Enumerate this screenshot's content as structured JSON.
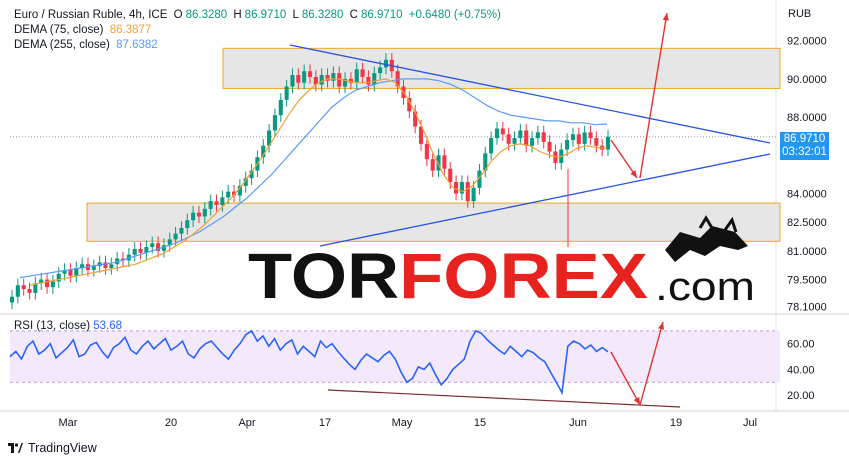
{
  "header": {
    "symbol": "Euro / Russian Ruble, 4h, ICE",
    "open_label": "O",
    "open": "86.3280",
    "high_label": "H",
    "high": "86.9710",
    "low_label": "L",
    "low": "86.3280",
    "close_label": "C",
    "close": "86.9710",
    "change": "+0.6480 (+0.75%)",
    "dema75_label": "DEMA (75, close)",
    "dema75": "86.3877",
    "dema255_label": "DEMA (255, close)",
    "dema255": "87.6382",
    "currency": "RUB"
  },
  "price_badge": {
    "price": "86.9710",
    "countdown": "03:32:01"
  },
  "rsi": {
    "label": "RSI (13, close)",
    "value": "53.68"
  },
  "watermark": {
    "text_dark": "TOR",
    "text_red": "FOREX",
    "text_suffix": ".com"
  },
  "brand": {
    "name": "TradingView"
  },
  "colors": {
    "up": "#089981",
    "down": "#f23645",
    "dema75": "#f2a033",
    "dema255": "#5b9cf6",
    "trendline": "#2a52e0",
    "rsi": "#2962ff",
    "zone": "#f5a623",
    "arrow": "#e63232"
  },
  "chart_data": [
    {
      "type": "candlestick",
      "title": "Euro / Russian Ruble, 4h, ICE",
      "y_axis_ticks": [
        "92.0000",
        "90.0000",
        "88.0000",
        "84.0000",
        "82.5000",
        "81.0000",
        "79.5000",
        "78.1000"
      ],
      "x_axis_ticks": [
        "Mar",
        "20",
        "Apr",
        "17",
        "May",
        "15",
        "Jun",
        "19",
        "Jul"
      ],
      "ylim": [
        77.8,
        93.5
      ],
      "closes": [
        78.6,
        79.2,
        79.0,
        78.8,
        79.3,
        79.5,
        79.1,
        79.4,
        79.8,
        80.0,
        79.7,
        80.1,
        80.3,
        80.0,
        80.2,
        80.4,
        80.1,
        80.3,
        80.6,
        80.5,
        80.8,
        81.1,
        80.9,
        81.2,
        81.4,
        81.0,
        81.3,
        81.6,
        81.9,
        82.2,
        82.6,
        83.0,
        82.8,
        83.2,
        83.6,
        83.4,
        83.8,
        84.1,
        83.9,
        84.4,
        84.8,
        85.2,
        85.9,
        86.5,
        87.3,
        88.1,
        88.9,
        89.6,
        90.2,
        89.8,
        90.4,
        90.1,
        89.7,
        90.2,
        89.9,
        90.3,
        89.6,
        90.0,
        89.8,
        90.5,
        90.1,
        89.7,
        90.3,
        90.6,
        91.0,
        90.4,
        89.6,
        89.0,
        88.3,
        87.5,
        86.6,
        85.8,
        85.2,
        86.0,
        85.3,
        84.6,
        84.0,
        84.6,
        83.6,
        84.3,
        85.2,
        86.1,
        86.9,
        87.4,
        87.1,
        86.6,
        86.9,
        87.3,
        86.5,
        86.9,
        87.2,
        86.7,
        86.2,
        85.6,
        86.3,
        86.8,
        87.1,
        86.6,
        87.2,
        86.9,
        86.5,
        86.3,
        86.97
      ],
      "dema75": [
        79.2,
        79.3,
        79.4,
        79.5,
        79.6,
        79.7,
        79.8,
        79.9,
        80.0,
        80.1,
        80.2,
        80.3,
        80.5,
        80.7,
        80.9,
        81.2,
        81.5,
        81.9,
        82.3,
        82.8,
        83.3,
        83.8,
        84.4,
        85.1,
        85.8,
        86.6,
        87.4,
        88.2,
        88.9,
        89.4,
        89.8,
        90.0,
        90.0,
        89.9,
        89.8,
        89.8,
        89.9,
        90.0,
        89.8,
        89.2,
        88.3,
        87.2,
        86.0,
        85.0,
        84.3,
        84.1,
        84.4,
        85.0,
        85.7,
        86.2,
        86.5,
        86.6,
        86.5,
        86.2,
        86.0,
        85.9,
        86.1,
        86.4,
        86.5,
        86.4,
        86.39
      ],
      "dema255": [
        79.6,
        79.7,
        79.8,
        79.9,
        80.0,
        80.1,
        80.2,
        80.3,
        80.4,
        80.6,
        80.8,
        81.0,
        81.2,
        81.4,
        81.7,
        82.0,
        82.4,
        82.8,
        83.3,
        83.8,
        84.4,
        85.0,
        85.7,
        86.4,
        87.1,
        87.8,
        88.5,
        89.0,
        89.4,
        89.6,
        89.8,
        89.9,
        90.0,
        90.0,
        90.0,
        89.9,
        89.7,
        89.4,
        89.0,
        88.6,
        88.3,
        88.1,
        88.0,
        87.9,
        87.8,
        87.8,
        87.7,
        87.7,
        87.6,
        87.64
      ]
    },
    {
      "type": "line",
      "title": "RSI (13, close)",
      "y_axis_ticks": [
        "60.00",
        "40.00",
        "20.00"
      ],
      "ylim": [
        10,
        80
      ],
      "band": [
        30,
        70
      ],
      "values": [
        50,
        54,
        48,
        58,
        62,
        52,
        55,
        60,
        49,
        53,
        57,
        63,
        50,
        52,
        59,
        61,
        54,
        49,
        57,
        60,
        65,
        55,
        52,
        58,
        62,
        56,
        60,
        64,
        55,
        58,
        62,
        52,
        49,
        56,
        60,
        62,
        57,
        52,
        48,
        55,
        60,
        67,
        70,
        62,
        66,
        58,
        64,
        55,
        60,
        63,
        52,
        58,
        54,
        50,
        62,
        57,
        60,
        54,
        49,
        44,
        40,
        47,
        52,
        49,
        46,
        51,
        54,
        48,
        38,
        30,
        33,
        42,
        40,
        45,
        36,
        28,
        33,
        40,
        44,
        48,
        62,
        70,
        68,
        63,
        59,
        55,
        52,
        58,
        54,
        50,
        55,
        53,
        49,
        46,
        38,
        30,
        22,
        58,
        62,
        60,
        56,
        59,
        54,
        57,
        53.68
      ]
    }
  ]
}
